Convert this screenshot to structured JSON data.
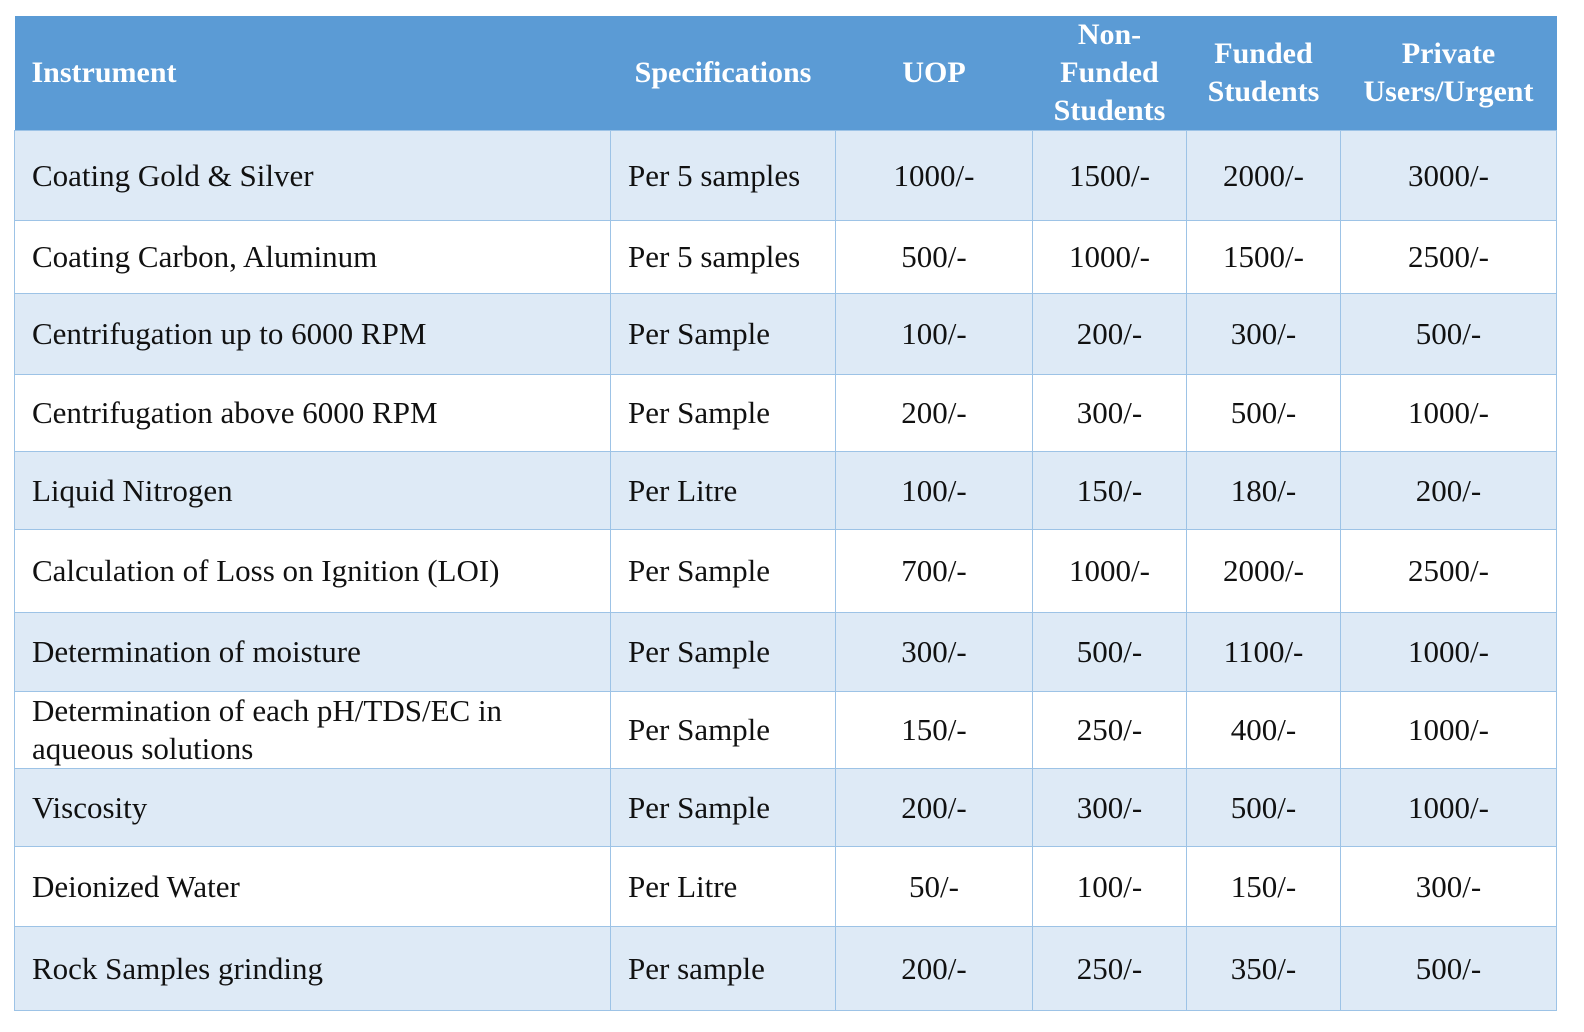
{
  "table": {
    "headers": {
      "instrument": "Instrument",
      "specifications": "Specifications",
      "uop": "UOP",
      "non_funded": "Non-Funded Students",
      "funded": "Funded Students",
      "private": "Private Users/Urgent"
    },
    "rows": [
      {
        "instrument": "Coating Gold & Silver",
        "spec": "Per 5 samples",
        "uop": "1000/-",
        "non_funded": "1500/-",
        "funded": "2000/-",
        "private": "3000/-"
      },
      {
        "instrument": "Coating Carbon, Aluminum",
        "spec": "Per 5 samples",
        "uop": "500/-",
        "non_funded": "1000/-",
        "funded": "1500/-",
        "private": "2500/-"
      },
      {
        "instrument": "Centrifugation up to 6000 RPM",
        "spec": "Per Sample",
        "uop": "100/-",
        "non_funded": "200/-",
        "funded": "300/-",
        "private": "500/-"
      },
      {
        "instrument": "Centrifugation above 6000 RPM",
        "spec": "Per Sample",
        "uop": "200/-",
        "non_funded": "300/-",
        "funded": "500/-",
        "private": "1000/-"
      },
      {
        "instrument": "Liquid Nitrogen",
        "spec": "Per Litre",
        "uop": "100/-",
        "non_funded": "150/-",
        "funded": "180/-",
        "private": "200/-"
      },
      {
        "instrument": "Calculation of Loss on Ignition (LOI)",
        "spec": "Per Sample",
        "uop": "700/-",
        "non_funded": "1000/-",
        "funded": "2000/-",
        "private": "2500/-"
      },
      {
        "instrument": "Determination of moisture",
        "spec": "Per Sample",
        "uop": "300/-",
        "non_funded": "500/-",
        "funded": "1100/-",
        "private": "1000/-"
      },
      {
        "instrument": "Determination of each pH/TDS/EC in aqueous solutions",
        "spec": "Per Sample",
        "uop": "150/-",
        "non_funded": "250/-",
        "funded": "400/-",
        "private": "1000/-"
      },
      {
        "instrument": "Viscosity",
        "spec": "Per Sample",
        "uop": "200/-",
        "non_funded": "300/-",
        "funded": "500/-",
        "private": "1000/-"
      },
      {
        "instrument": "Deionized Water",
        "spec": "Per Litre",
        "uop": "50/-",
        "non_funded": "100/-",
        "funded": "150/-",
        "private": "300/-"
      },
      {
        "instrument": "Rock Samples grinding",
        "spec": "Per sample",
        "uop": "200/-",
        "non_funded": "250/-",
        "funded": "350/-",
        "private": "500/-"
      }
    ]
  },
  "colors": {
    "header_bg": "#5b9bd5",
    "header_text": "#ffffff",
    "band_row_bg": "#deeaf6",
    "plain_row_bg": "#ffffff",
    "grid_line": "#9dc3e6"
  }
}
